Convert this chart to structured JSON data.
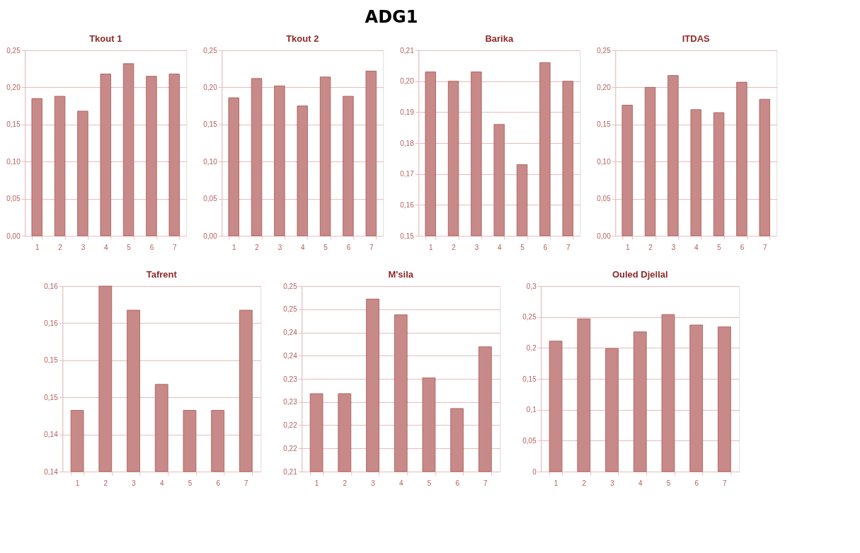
{
  "chart_data": [
    {
      "type": "other",
      "title": "ADG1"
    },
    {
      "type": "bar",
      "title": "Tkout 1",
      "categories": [
        "1",
        "2",
        "3",
        "4",
        "5",
        "6",
        "7"
      ],
      "values": [
        0.185,
        0.188,
        0.168,
        0.218,
        0.232,
        0.215,
        0.218
      ],
      "color": "#c78a88",
      "ylim": [
        0,
        0.25
      ],
      "yticks": [
        {
          "value": 0,
          "label": "0,00"
        },
        {
          "value": 0.05,
          "label": "0,05"
        },
        {
          "value": 0.1,
          "label": "0,10"
        },
        {
          "value": 0.15,
          "label": "0,15"
        },
        {
          "value": 0.2,
          "label": "0,20"
        },
        {
          "value": 0.25,
          "label": "0,25"
        }
      ],
      "grid": "y"
    },
    {
      "type": "bar",
      "title": "Tkout 2",
      "categories": [
        "1",
        "2",
        "3",
        "4",
        "5",
        "6",
        "7"
      ],
      "values": [
        0.186,
        0.212,
        0.202,
        0.175,
        0.214,
        0.188,
        0.222
      ],
      "color": "#c78a88",
      "ylim": [
        0,
        0.25
      ],
      "yticks": [
        {
          "value": 0,
          "label": "0,00"
        },
        {
          "value": 0.05,
          "label": "0,05"
        },
        {
          "value": 0.1,
          "label": "0,10"
        },
        {
          "value": 0.15,
          "label": "0,15"
        },
        {
          "value": 0.2,
          "label": "0,20"
        },
        {
          "value": 0.25,
          "label": "0,25"
        }
      ],
      "grid": "y"
    },
    {
      "type": "bar",
      "title": "Barika",
      "categories": [
        "1",
        "2",
        "3",
        "4",
        "5",
        "6",
        "7"
      ],
      "values": [
        0.203,
        0.2,
        0.203,
        0.186,
        0.173,
        0.206,
        0.2
      ],
      "color": "#c78a88",
      "ylim": [
        0.15,
        0.21
      ],
      "yticks": [
        {
          "value": 0.15,
          "label": "0,15"
        },
        {
          "value": 0.16,
          "label": "0,16"
        },
        {
          "value": 0.17,
          "label": "0,17"
        },
        {
          "value": 0.18,
          "label": "0,18"
        },
        {
          "value": 0.19,
          "label": "0,19"
        },
        {
          "value": 0.2,
          "label": "0,20"
        },
        {
          "value": 0.21,
          "label": "0,21"
        }
      ],
      "grid": "y"
    },
    {
      "type": "bar",
      "title": "ITDAS",
      "categories": [
        "1",
        "2",
        "3",
        "4",
        "5",
        "6",
        "7"
      ],
      "values": [
        0.176,
        0.2,
        0.216,
        0.17,
        0.166,
        0.207,
        0.184
      ],
      "color": "#c78a88",
      "ylim": [
        0,
        0.25
      ],
      "yticks": [
        {
          "value": 0,
          "label": "0,00"
        },
        {
          "value": 0.05,
          "label": "0,05"
        },
        {
          "value": 0.1,
          "label": "0,10"
        },
        {
          "value": 0.15,
          "label": "0,15"
        },
        {
          "value": 0.2,
          "label": "0,20"
        },
        {
          "value": 0.25,
          "label": "0,25"
        }
      ],
      "grid": "y"
    },
    {
      "type": "bar",
      "title": "Tafrent",
      "categories": [
        "1",
        "2",
        "3",
        "4",
        "5",
        "6",
        "7"
      ],
      "values": [
        0.1466,
        0.16,
        0.1574,
        0.1494,
        0.1466,
        0.1466,
        0.1574
      ],
      "color": "#c78a88",
      "ylim": [
        0.14,
        0.16
      ],
      "yticks": [
        {
          "value": 0.14,
          "label": "0,14"
        },
        {
          "value": 0.144,
          "label": "0,14"
        },
        {
          "value": 0.148,
          "label": "0,15"
        },
        {
          "value": 0.152,
          "label": "0,15"
        },
        {
          "value": 0.156,
          "label": "0,16"
        },
        {
          "value": 0.16,
          "label": "0,16"
        }
      ],
      "grid": "y"
    },
    {
      "type": "bar",
      "title": "M'sila",
      "categories": [
        "1",
        "2",
        "3",
        "4",
        "5",
        "6",
        "7"
      ],
      "values": [
        0.2268,
        0.2268,
        0.2472,
        0.2438,
        0.2302,
        0.2236,
        0.2369
      ],
      "color": "#c78a88",
      "ylim": [
        0.21,
        0.25
      ],
      "yticks": [
        {
          "value": 0.21,
          "label": "0,21"
        },
        {
          "value": 0.215,
          "label": "0,22"
        },
        {
          "value": 0.22,
          "label": "0,22"
        },
        {
          "value": 0.225,
          "label": "0,23"
        },
        {
          "value": 0.23,
          "label": "0,23"
        },
        {
          "value": 0.235,
          "label": "0,24"
        },
        {
          "value": 0.24,
          "label": "0,24"
        },
        {
          "value": 0.245,
          "label": "0,25"
        },
        {
          "value": 0.25,
          "label": "0,25"
        }
      ],
      "grid": "y"
    },
    {
      "type": "bar",
      "title": "Ouled Djellal",
      "categories": [
        "1",
        "2",
        "3",
        "4",
        "5",
        "6",
        "7"
      ],
      "values": [
        0.211,
        0.247,
        0.199,
        0.226,
        0.254,
        0.237,
        0.234
      ],
      "color": "#c78a88",
      "ylim": [
        0,
        0.3
      ],
      "yticks": [
        0,
        {
          "value": 0.05,
          "label": "0,05"
        },
        {
          "value": 0.1,
          "label": "0,1"
        },
        {
          "value": 0.15,
          "label": "0,15"
        },
        {
          "value": 0.2,
          "label": "0,2"
        },
        {
          "value": 0.25,
          "label": "0,25"
        },
        {
          "value": 0.3,
          "label": "0,3"
        }
      ],
      "grid": "y"
    }
  ]
}
